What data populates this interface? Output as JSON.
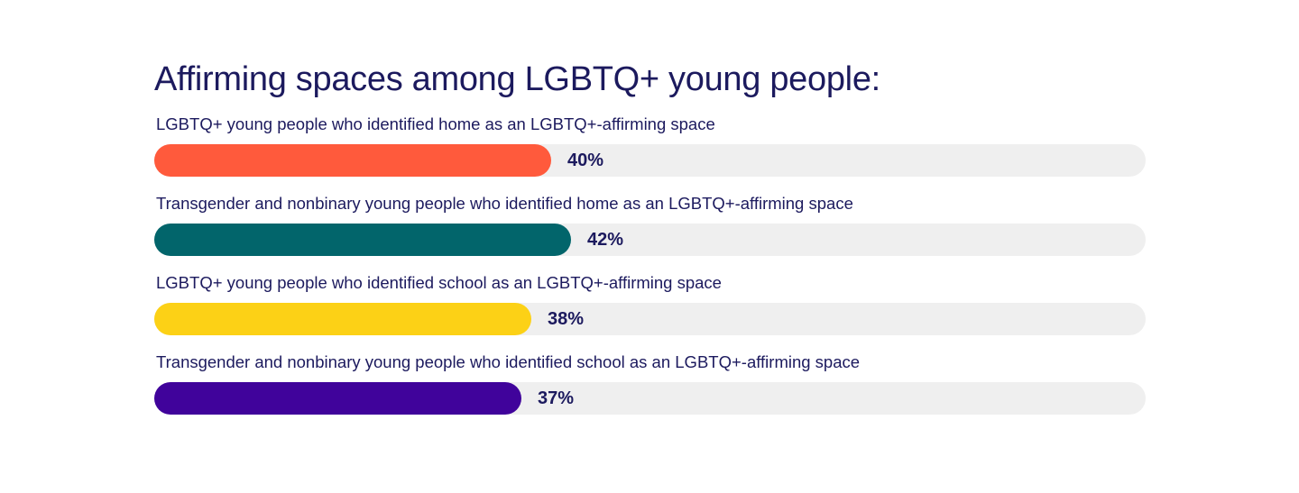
{
  "chart_data": {
    "type": "bar",
    "orientation": "horizontal",
    "title": "Affirming spaces among LGBTQ+ young people:",
    "xlim": [
      0,
      100
    ],
    "grid": false,
    "categories": [
      "LGBTQ+ young people who identified home as an LGBTQ+-affirming space",
      "Transgender and nonbinary young people who identified home as an LGBTQ+-affirming space",
      "LGBTQ+ young people who identified school as an LGBTQ+-affirming space",
      "Transgender and nonbinary young people who identified school as an LGBTQ+-affirming space"
    ],
    "values": [
      40,
      42,
      38,
      37
    ],
    "value_labels": [
      "40%",
      "42%",
      "38%",
      "37%"
    ],
    "colors": [
      "#ff5a3c",
      "#02656b",
      "#fcd116",
      "#40039b"
    ],
    "track_color": "#efefef"
  }
}
